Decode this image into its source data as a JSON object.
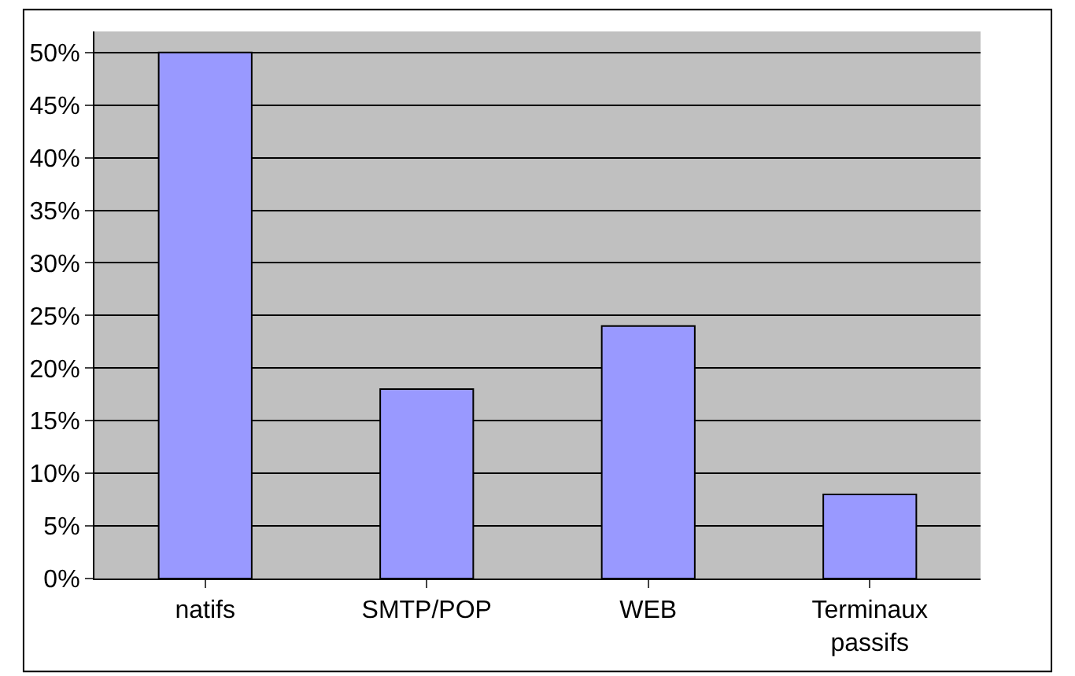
{
  "chart_data": {
    "type": "bar",
    "categories": [
      "natifs",
      "SMTP/POP",
      "WEB",
      "Terminaux passifs"
    ],
    "values": [
      0.5,
      0.18,
      0.24,
      0.08
    ],
    "color": "#9999ff",
    "ylim": [
      0,
      0.52
    ],
    "yticks": [
      {
        "value": 0,
        "label": "0%"
      },
      {
        "value": 0.05,
        "label": "5%"
      },
      {
        "value": 0.1,
        "label": "10%"
      },
      {
        "value": 0.15,
        "label": "15%"
      },
      {
        "value": 0.2,
        "label": "20%"
      },
      {
        "value": 0.25,
        "label": "25%"
      },
      {
        "value": 0.3,
        "label": "30%"
      },
      {
        "value": 0.35,
        "label": "35%"
      },
      {
        "value": 0.4,
        "label": "40%"
      },
      {
        "value": 0.45,
        "label": "45%"
      },
      {
        "value": 0.5,
        "label": "50%"
      }
    ],
    "grid": "y"
  }
}
